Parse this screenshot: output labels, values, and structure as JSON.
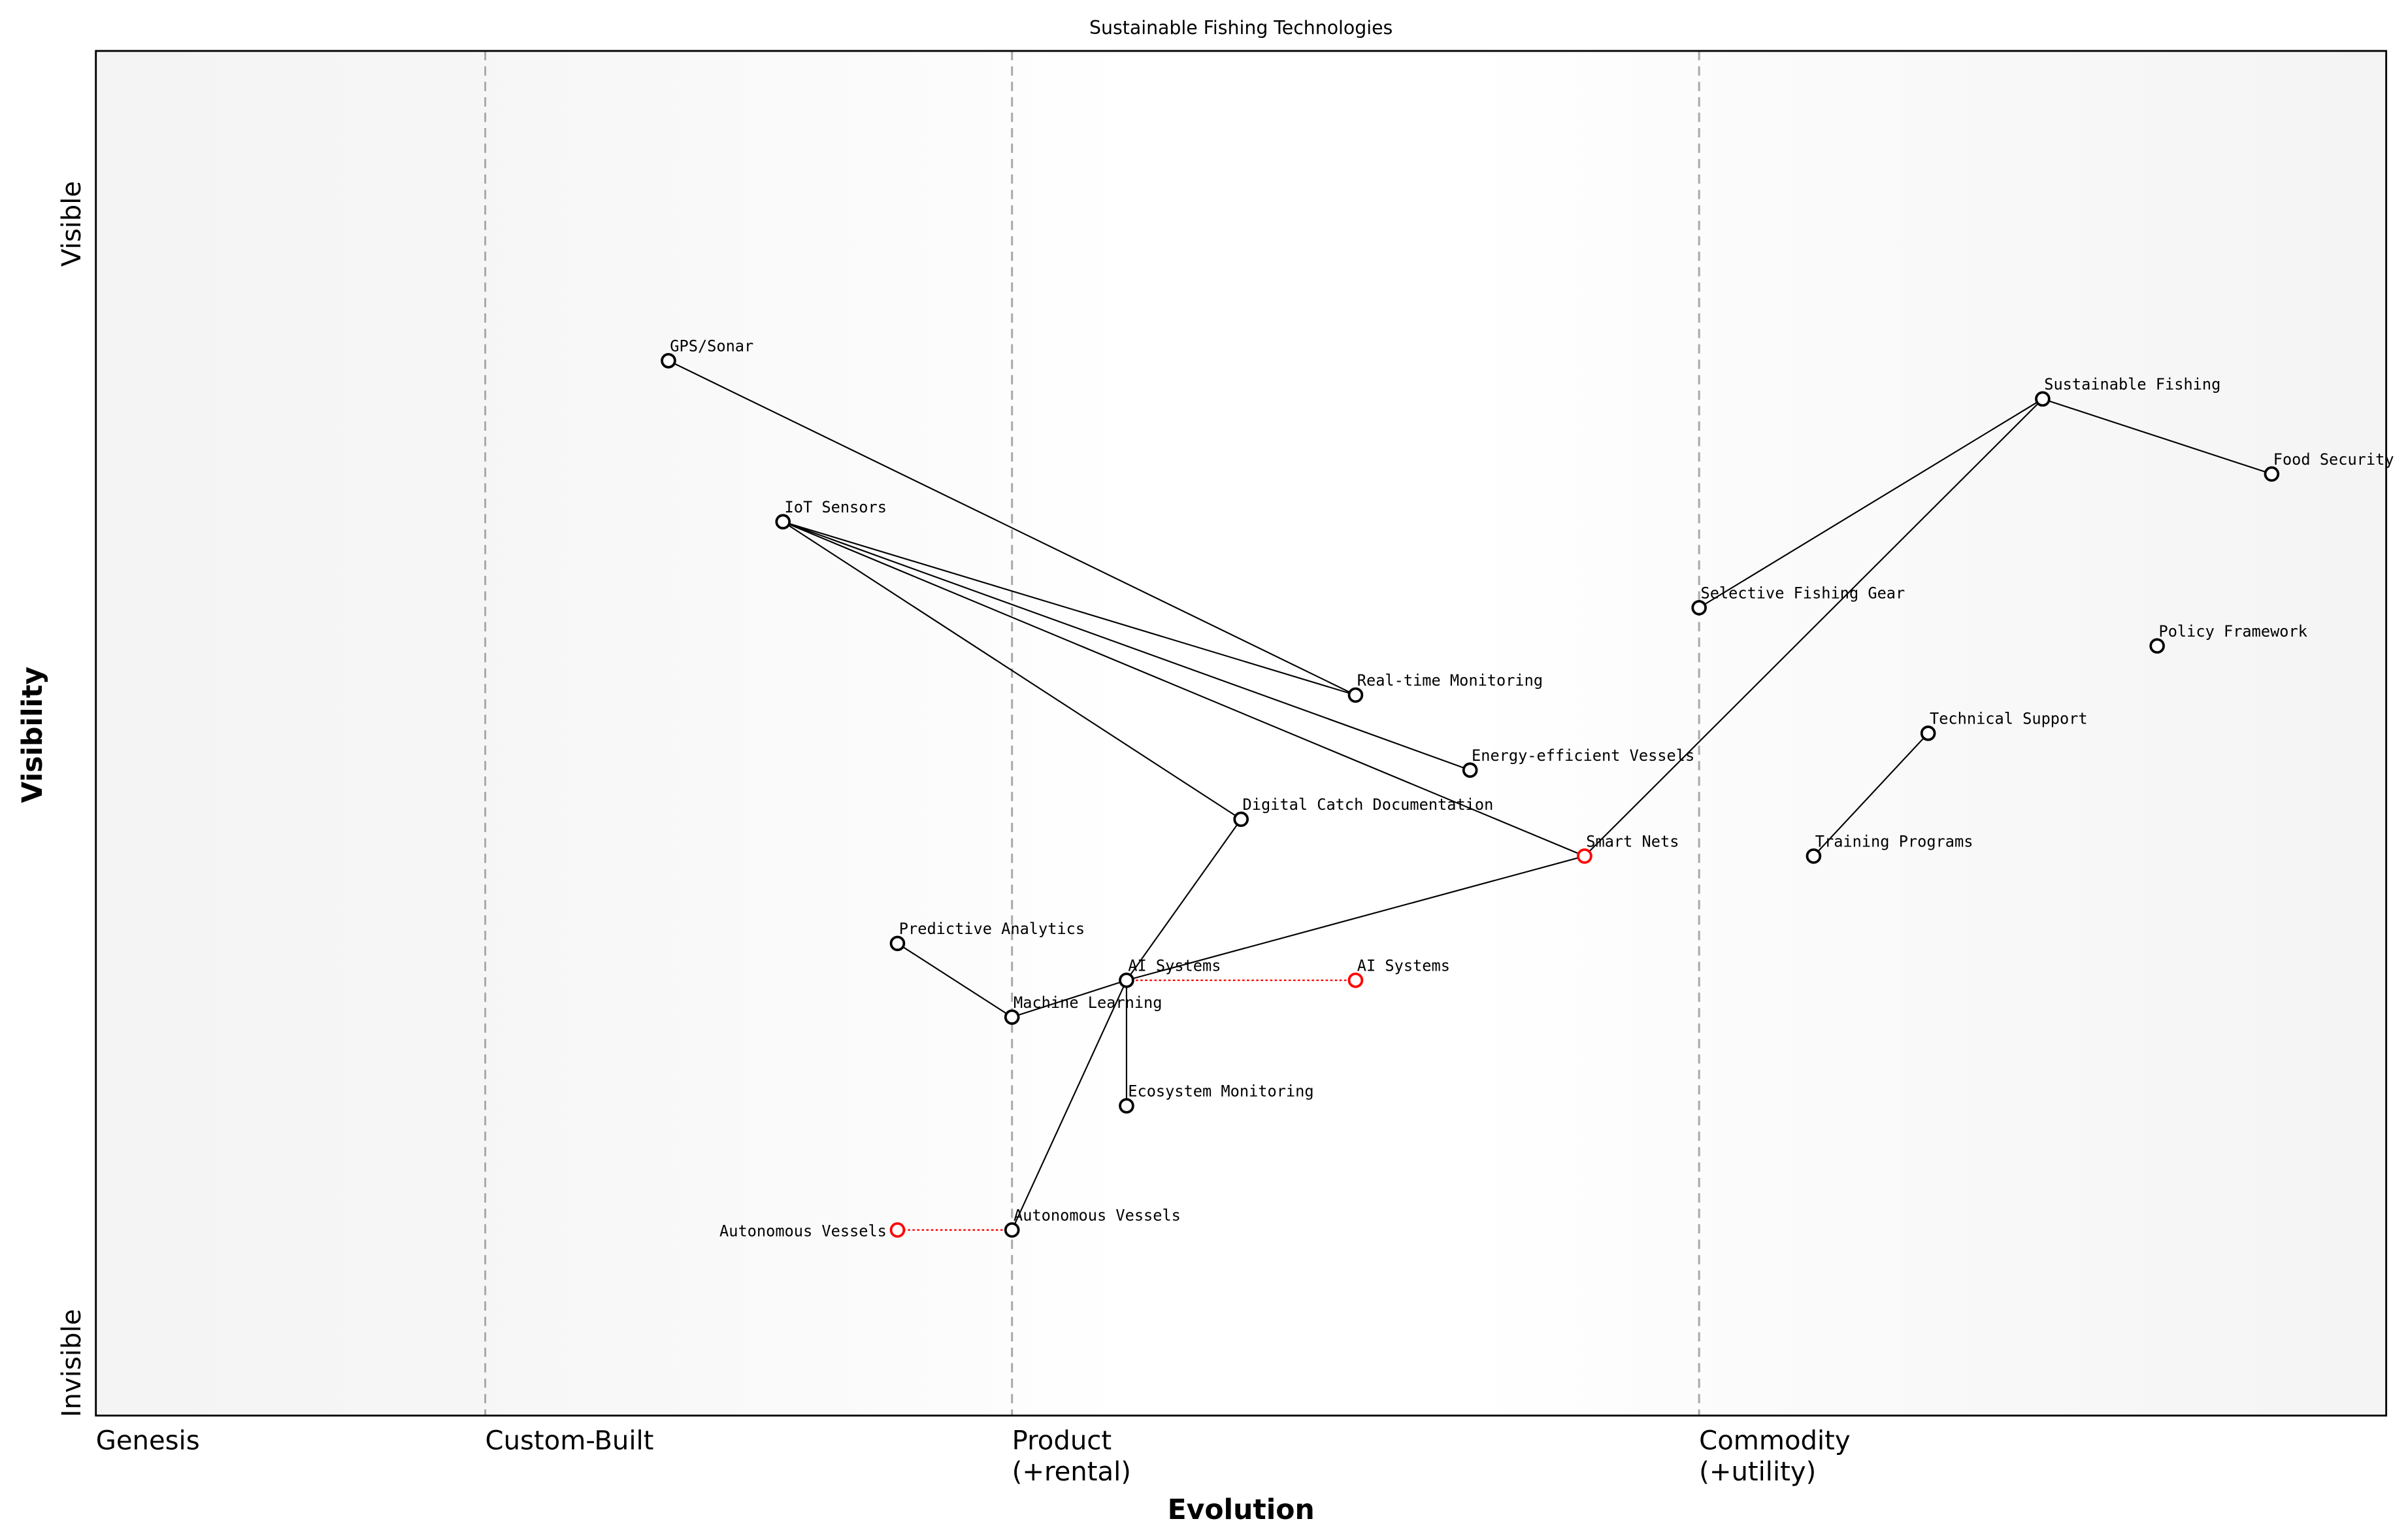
{
  "chart_data": {
    "type": "scatter",
    "title": "Sustainable Fishing Technologies",
    "xlabel": "Evolution",
    "ylabel": "Visibility",
    "xlim": [
      0,
      1
    ],
    "ylim": [
      0,
      1
    ],
    "grid": false,
    "stage_labels": [
      {
        "label": "Genesis",
        "x": 0.0
      },
      {
        "label": "Custom-Built",
        "x": 0.17
      },
      {
        "label": "Product\n(+rental)",
        "x": 0.4
      },
      {
        "label": "Commodity\n(+utility)",
        "x": 0.7
      }
    ],
    "stage_dividers": [
      0.17,
      0.4,
      0.7
    ],
    "y_tick_labels": {
      "top": "Visible",
      "bottom": "Invisible"
    },
    "colors": {
      "node": "#000000",
      "evolved_node": "#ff0000",
      "evolution_line": "#ff0000",
      "divider": "#aaaaaa",
      "edge_band": "#f5f5f5"
    },
    "nodes": [
      {
        "id": "gps",
        "label": "GPS/Sonar",
        "x": 0.25,
        "y": 0.773
      },
      {
        "id": "iot",
        "label": "IoT Sensors",
        "x": 0.3,
        "y": 0.655
      },
      {
        "id": "realtime",
        "label": "Real-time Monitoring",
        "x": 0.55,
        "y": 0.528
      },
      {
        "id": "energy",
        "label": "Energy-efficient Vessels",
        "x": 0.6,
        "y": 0.473
      },
      {
        "id": "digital",
        "label": "Digital Catch Documentation",
        "x": 0.5,
        "y": 0.437
      },
      {
        "id": "smartnets",
        "label": "Smart Nets",
        "x": 0.65,
        "y": 0.41,
        "evolved": true
      },
      {
        "id": "sustainable",
        "label": "Sustainable Fishing",
        "x": 0.85,
        "y": 0.745
      },
      {
        "id": "food",
        "label": "Food Security",
        "x": 0.95,
        "y": 0.69
      },
      {
        "id": "selective",
        "label": "Selective Fishing Gear",
        "x": 0.7,
        "y": 0.592
      },
      {
        "id": "policy",
        "label": "Policy Framework",
        "x": 0.9,
        "y": 0.564
      },
      {
        "id": "technical",
        "label": "Technical Support",
        "x": 0.8,
        "y": 0.5
      },
      {
        "id": "training",
        "label": "Training Programs",
        "x": 0.75,
        "y": 0.41
      },
      {
        "id": "predictive",
        "label": "Predictive Analytics",
        "x": 0.35,
        "y": 0.346
      },
      {
        "id": "ai",
        "label": "AI Systems",
        "x": 0.45,
        "y": 0.319
      },
      {
        "id": "ml",
        "label": "Machine Learning",
        "x": 0.4,
        "y": 0.292
      },
      {
        "id": "ecosystem",
        "label": "Ecosystem Monitoring",
        "x": 0.45,
        "y": 0.227
      },
      {
        "id": "autonomous",
        "label": "Autonomous Vessels",
        "x": 0.4,
        "y": 0.136
      },
      {
        "id": "ai_evolved",
        "label": "AI Systems",
        "x": 0.55,
        "y": 0.319,
        "evolved": true
      },
      {
        "id": "autonomous_evolved",
        "label": "Autonomous Vessels",
        "x": 0.35,
        "y": 0.136,
        "evolved": true
      }
    ],
    "edges": [
      [
        "gps",
        "realtime"
      ],
      [
        "iot",
        "realtime"
      ],
      [
        "iot",
        "energy"
      ],
      [
        "iot",
        "smartnets"
      ],
      [
        "iot",
        "digital"
      ],
      [
        "sustainable",
        "selective"
      ],
      [
        "sustainable",
        "food"
      ],
      [
        "sustainable",
        "smartnets"
      ],
      [
        "technical",
        "training"
      ],
      [
        "predictive",
        "ml"
      ],
      [
        "ml",
        "ai"
      ],
      [
        "ai",
        "digital"
      ],
      [
        "ai",
        "smartnets"
      ],
      [
        "ai",
        "ecosystem"
      ],
      [
        "ai",
        "autonomous"
      ]
    ],
    "evolutions": [
      [
        "ai",
        "ai_evolved"
      ],
      [
        "autonomous",
        "autonomous_evolved"
      ]
    ]
  }
}
